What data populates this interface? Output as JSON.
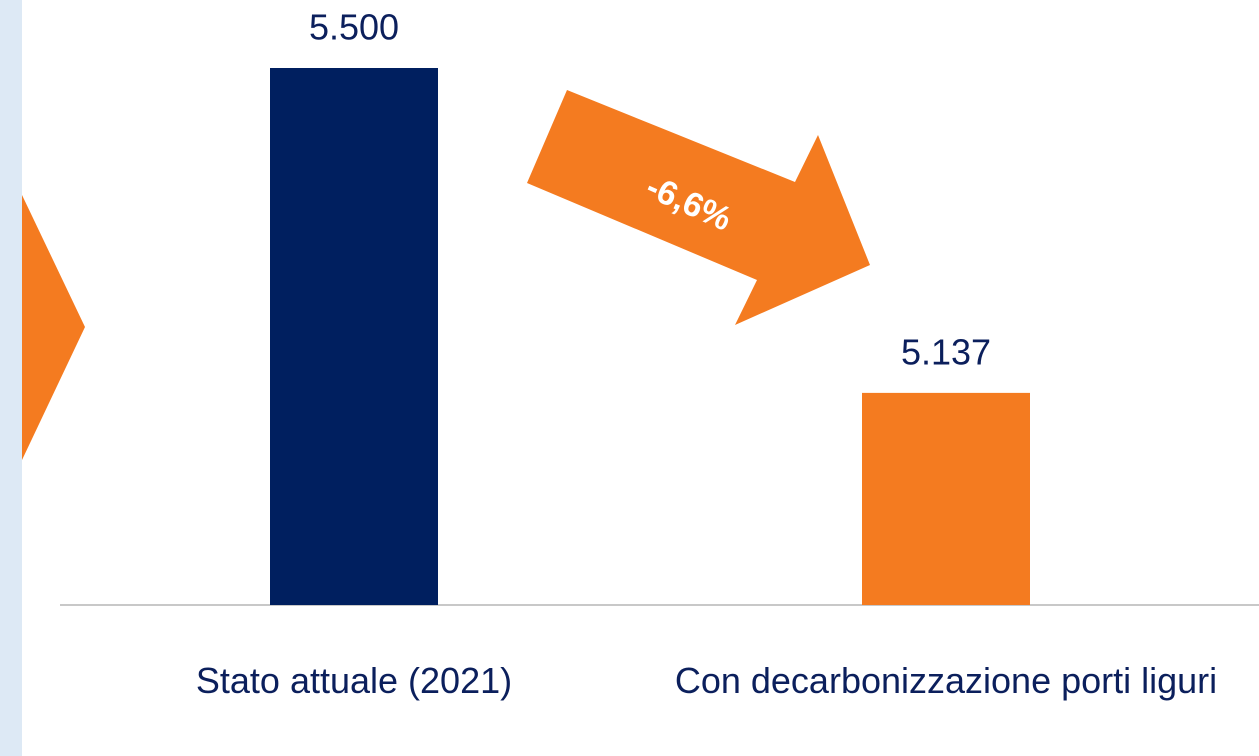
{
  "chart_data": {
    "type": "bar",
    "categories": [
      "Stato attuale (2021)",
      "Con decarbonizzazione porti liguri"
    ],
    "values": [
      5500,
      5137
    ],
    "value_labels": [
      "5.500",
      "5.137"
    ],
    "colors": [
      "#001f5f",
      "#f47b20"
    ],
    "ylim": [
      4900,
      5500
    ],
    "annotation": "-6,6%"
  }
}
